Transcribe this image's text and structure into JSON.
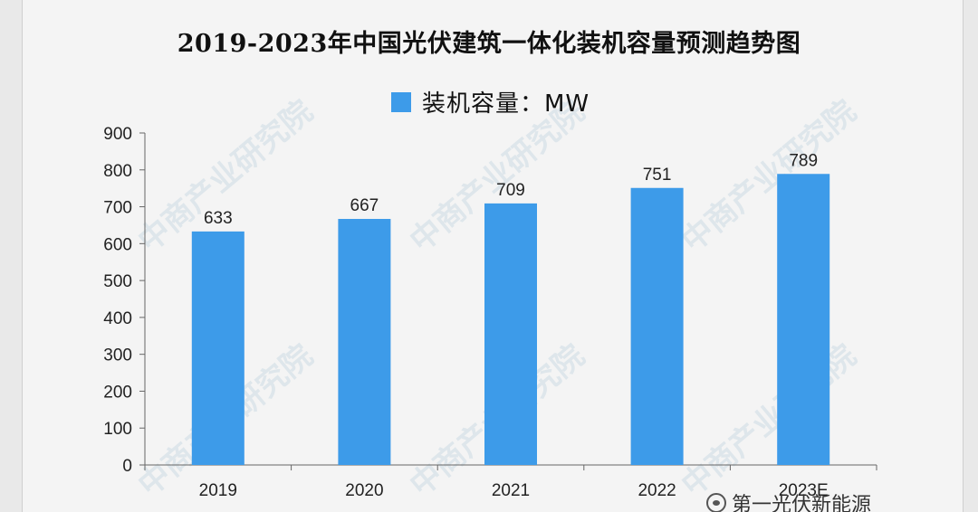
{
  "chart_data": {
    "type": "bar",
    "title": "2019-2023年中国光伏建筑一体化装机容量预测趋势图",
    "series": [
      {
        "name": "装机容量：MW",
        "values": [
          633,
          667,
          709,
          751,
          789
        ]
      }
    ],
    "categories": [
      "2019",
      "2020",
      "2021",
      "2022",
      "2023E"
    ],
    "ylim": [
      0,
      900
    ],
    "yticks": [
      0,
      100,
      200,
      300,
      400,
      500,
      600,
      700,
      800,
      900
    ],
    "grid": false,
    "legend_position": "top-center",
    "bar_color": "#3d9be9",
    "data_labels": [
      "633",
      "667",
      "709",
      "751",
      "789"
    ]
  },
  "watermark": {
    "text": "中商产业研究院"
  },
  "footer": {
    "source": "第一光伏新能源",
    "icon": "wechat-icon"
  }
}
